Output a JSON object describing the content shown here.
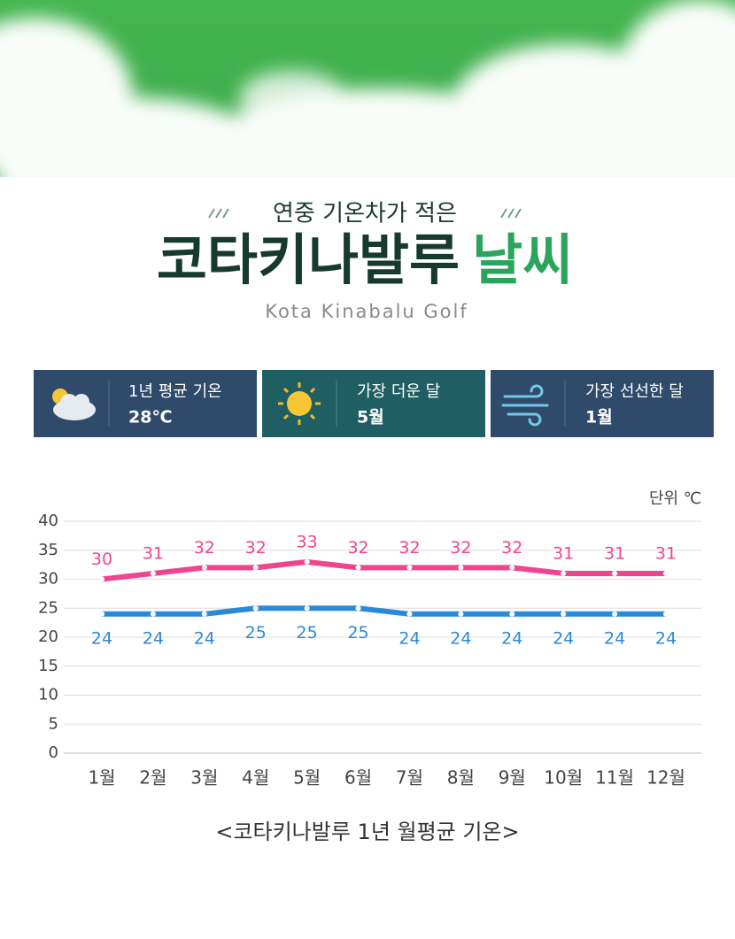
{
  "header": {
    "kicker": "연중 기온차가 적은",
    "title_main": "코타키나발루",
    "title_accent": "날씨",
    "subtitle": "Kota Kinabalu Golf"
  },
  "cards": [
    {
      "label": "1년 평균 기온",
      "value": "28℃"
    },
    {
      "label": "가장 더운 달",
      "value": "5월"
    },
    {
      "label": "가장 선선한 달",
      "value": "1월"
    }
  ],
  "chart_data": {
    "type": "line",
    "unit_label": "단위 ℃",
    "caption": "<코타키나발루 1년 월평균 기온>",
    "categories": [
      "1월",
      "2월",
      "3월",
      "4월",
      "5월",
      "6월",
      "7월",
      "8월",
      "9월",
      "10월",
      "11월",
      "12월"
    ],
    "series": [
      {
        "color": "#f0448f",
        "values": [
          30,
          31,
          32,
          32,
          33,
          32,
          32,
          32,
          32,
          31,
          31,
          31
        ]
      },
      {
        "color": "#2b8ad8",
        "values": [
          24,
          24,
          24,
          25,
          25,
          25,
          24,
          24,
          24,
          24,
          24,
          24
        ]
      }
    ],
    "ylim": [
      0,
      40
    ],
    "yticks": [
      0,
      5,
      10,
      15,
      20,
      25,
      30,
      35,
      40
    ],
    "grid": true
  }
}
